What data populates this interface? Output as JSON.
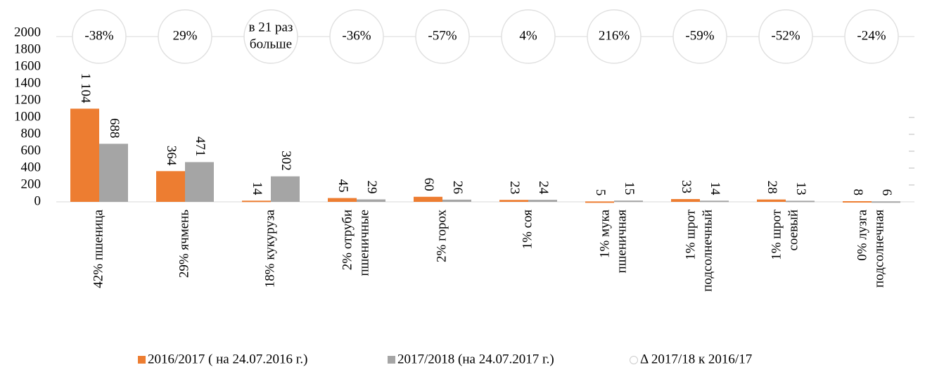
{
  "chart_data": {
    "type": "bar",
    "categories": [
      [
        "42% пшеница"
      ],
      [
        "29% ячмень"
      ],
      [
        "18% кукуруза"
      ],
      [
        "2% отруби",
        "пшеничные"
      ],
      [
        "2% горох"
      ],
      [
        "1% соя"
      ],
      [
        "1% мука",
        "пшеничная"
      ],
      [
        "1% шрот",
        "подсолнечный"
      ],
      [
        "1% шрот",
        "соевый"
      ],
      [
        "0% лузга",
        "подсолнечная"
      ]
    ],
    "series": [
      {
        "name": "2016/2017 ( на 24.07.2016 г.)",
        "color": "#ed7d31",
        "values": [
          1104,
          364,
          14,
          45,
          60,
          23,
          5,
          33,
          28,
          8
        ],
        "value_labels": [
          "1 104",
          "364",
          "14",
          "45",
          "60",
          "23",
          "5",
          "33",
          "28",
          "8"
        ]
      },
      {
        "name": "2017/2018 (на 24.07.2017 г.)",
        "color": "#a5a5a5",
        "values": [
          688,
          471,
          302,
          29,
          26,
          24,
          15,
          14,
          13,
          6
        ]
      }
    ],
    "delta": {
      "name": "Δ 2017/18 к 2016/17",
      "labels": [
        [
          "-38%"
        ],
        [
          "29%"
        ],
        [
          "в 21 раз",
          "больше"
        ],
        [
          "-36%"
        ],
        [
          "-57%"
        ],
        [
          "4%"
        ],
        [
          "216%"
        ],
        [
          "-59%"
        ],
        [
          "-52%"
        ],
        [
          "-24%"
        ]
      ]
    },
    "ylim": [
      0,
      2000
    ],
    "yticks": [
      0,
      200,
      400,
      600,
      800,
      1000,
      1200,
      1400,
      1600,
      1800,
      2000
    ]
  }
}
